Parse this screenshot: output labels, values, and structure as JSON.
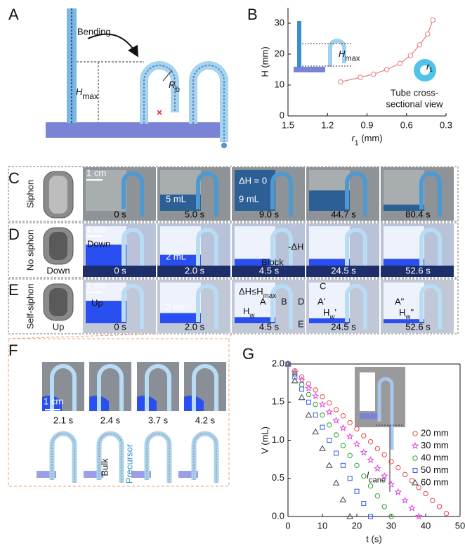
{
  "panel_labels": [
    "A",
    "B",
    "C",
    "D",
    "E",
    "F",
    "G"
  ],
  "panel_a": {
    "bending": "Bending",
    "h_max": {
      "main": "H",
      "sub": "max"
    },
    "r_b": {
      "main": "R",
      "sub": "b"
    }
  },
  "chart_data": [
    {
      "type": "line",
      "y_label": "H (mm)",
      "x_label": {
        "main": "r",
        "sub": "1",
        "tail": " (mm)"
      },
      "x": [
        1.1,
        0.95,
        0.85,
        0.75,
        0.65,
        0.57,
        0.5,
        0.44,
        0.4
      ],
      "values": [
        11,
        12.5,
        13.5,
        15,
        17,
        19.5,
        23,
        26.5,
        31
      ],
      "color": "#e87b7b",
      "marker": "circle",
      "xlim": [
        1.5,
        0.3
      ],
      "xticks": [
        1.5,
        1.2,
        0.9,
        0.6,
        0.3
      ],
      "ylim": [
        0,
        35
      ],
      "yticks": [
        0,
        10,
        20,
        30
      ],
      "inset": {
        "h_max": {
          "main": "H",
          "sub": "max"
        },
        "radius": {
          "main": "r",
          "sub": "1"
        },
        "caption": [
          "Tube cross-",
          "sectional view"
        ]
      }
    },
    {
      "type": "scatter",
      "y_label": "V (mL)",
      "x_label": "t (s)",
      "xlim": [
        0,
        50
      ],
      "xticks": [
        0,
        10,
        20,
        30,
        40,
        50
      ],
      "ylim": [
        0,
        2
      ],
      "yticks": [
        {
          "value": 0,
          "label": "0.0"
        },
        0.5,
        {
          "value": 1,
          "label": "1.0"
        },
        1.5,
        {
          "value": 2,
          "label": "2.0"
        }
      ],
      "legend": "right",
      "inset_label": {
        "main": "l",
        "sub": "cane"
      },
      "series": [
        {
          "name": "20 mm",
          "color": "#e8474a",
          "marker": "circle",
          "x": [
            0,
            2,
            4,
            6,
            8,
            10,
            12,
            14,
            16,
            18,
            20,
            22,
            24,
            26,
            28,
            30,
            32,
            34,
            36,
            38,
            40,
            42,
            44,
            46
          ],
          "values": [
            2.0,
            1.91,
            1.83,
            1.74,
            1.66,
            1.57,
            1.49,
            1.4,
            1.32,
            1.23,
            1.15,
            1.06,
            0.98,
            0.89,
            0.81,
            0.72,
            0.64,
            0.55,
            0.47,
            0.38,
            0.3,
            0.21,
            0.13,
            0.04
          ]
        },
        {
          "name": "30 mm",
          "color": "#e040e0",
          "marker": "star",
          "x": [
            0,
            2,
            4,
            6,
            8,
            10,
            12,
            14,
            16,
            18,
            20,
            22,
            24,
            26,
            28,
            30,
            32,
            34,
            36,
            38
          ],
          "values": [
            2.0,
            1.89,
            1.79,
            1.68,
            1.58,
            1.47,
            1.37,
            1.26,
            1.16,
            1.05,
            0.95,
            0.84,
            0.74,
            0.63,
            0.53,
            0.42,
            0.32,
            0.21,
            0.11,
            0.0
          ]
        },
        {
          "name": "40 mm",
          "color": "#2ca02c",
          "marker": "circle",
          "x": [
            0,
            2,
            4,
            6,
            8,
            10,
            12,
            14,
            16,
            18,
            20,
            22,
            24,
            26,
            28,
            30
          ],
          "values": [
            2.0,
            1.87,
            1.73,
            1.6,
            1.47,
            1.33,
            1.2,
            1.07,
            0.93,
            0.8,
            0.67,
            0.53,
            0.4,
            0.27,
            0.13,
            0.0
          ]
        },
        {
          "name": "50 mm",
          "color": "#3355ee",
          "marker": "square",
          "x": [
            0,
            2,
            4,
            6,
            8,
            10,
            12,
            14,
            16,
            18,
            20,
            22,
            24
          ],
          "values": [
            2.0,
            1.83,
            1.67,
            1.5,
            1.33,
            1.17,
            1.0,
            0.83,
            0.67,
            0.5,
            0.33,
            0.17,
            0.0
          ]
        },
        {
          "name": "60 mm",
          "color": "#444444",
          "marker": "triangle",
          "x": [
            0,
            2,
            4,
            6,
            8,
            10,
            12,
            14,
            16,
            18
          ],
          "values": [
            2.0,
            1.78,
            1.56,
            1.33,
            1.11,
            0.89,
            0.67,
            0.44,
            0.22,
            0.0
          ]
        }
      ]
    }
  ],
  "rows": [
    {
      "label": "Siphon",
      "scale": "1 cm",
      "times": [
        "0 s",
        "5.0 s",
        "9.0 s",
        "44.7 s",
        "80.4 s"
      ],
      "notes": [
        "5 mL",
        "ΔH = 0",
        "9 mL"
      ]
    },
    {
      "label": "No siphon",
      "icon_label": "Down",
      "scale": "1 cm",
      "times": [
        "0 s",
        "2.0 s",
        "4.5 s",
        "24.5 s",
        "52.6 s"
      ],
      "notes": [
        "Down",
        "2 mL",
        "-ΔH",
        "Block"
      ]
    },
    {
      "label": "Self-siphon",
      "icon_label": "Up",
      "scale": "1 cm",
      "times": [
        "0 s",
        "2.0 s",
        "4.5 s",
        "24.5 s",
        "52.6 s"
      ],
      "notes": [
        "Up",
        "2 mL",
        {
          "main": "ΔH≤H",
          "sub": "max"
        },
        "C",
        "A",
        "B",
        "D",
        {
          "main": "H",
          "sub": "w"
        },
        "E",
        "A'",
        {
          "main": "H",
          "sub": "w",
          "tail": "'"
        },
        "A\"",
        {
          "main": "H",
          "sub": "w",
          "tail": "\""
        }
      ]
    }
  ],
  "panel_f": {
    "scale": "1 cm",
    "times": [
      "2.1 s",
      "2.4 s",
      "3.7 s",
      "4.2 s"
    ],
    "bulk": "Bulk",
    "precursor": "Precursor"
  }
}
